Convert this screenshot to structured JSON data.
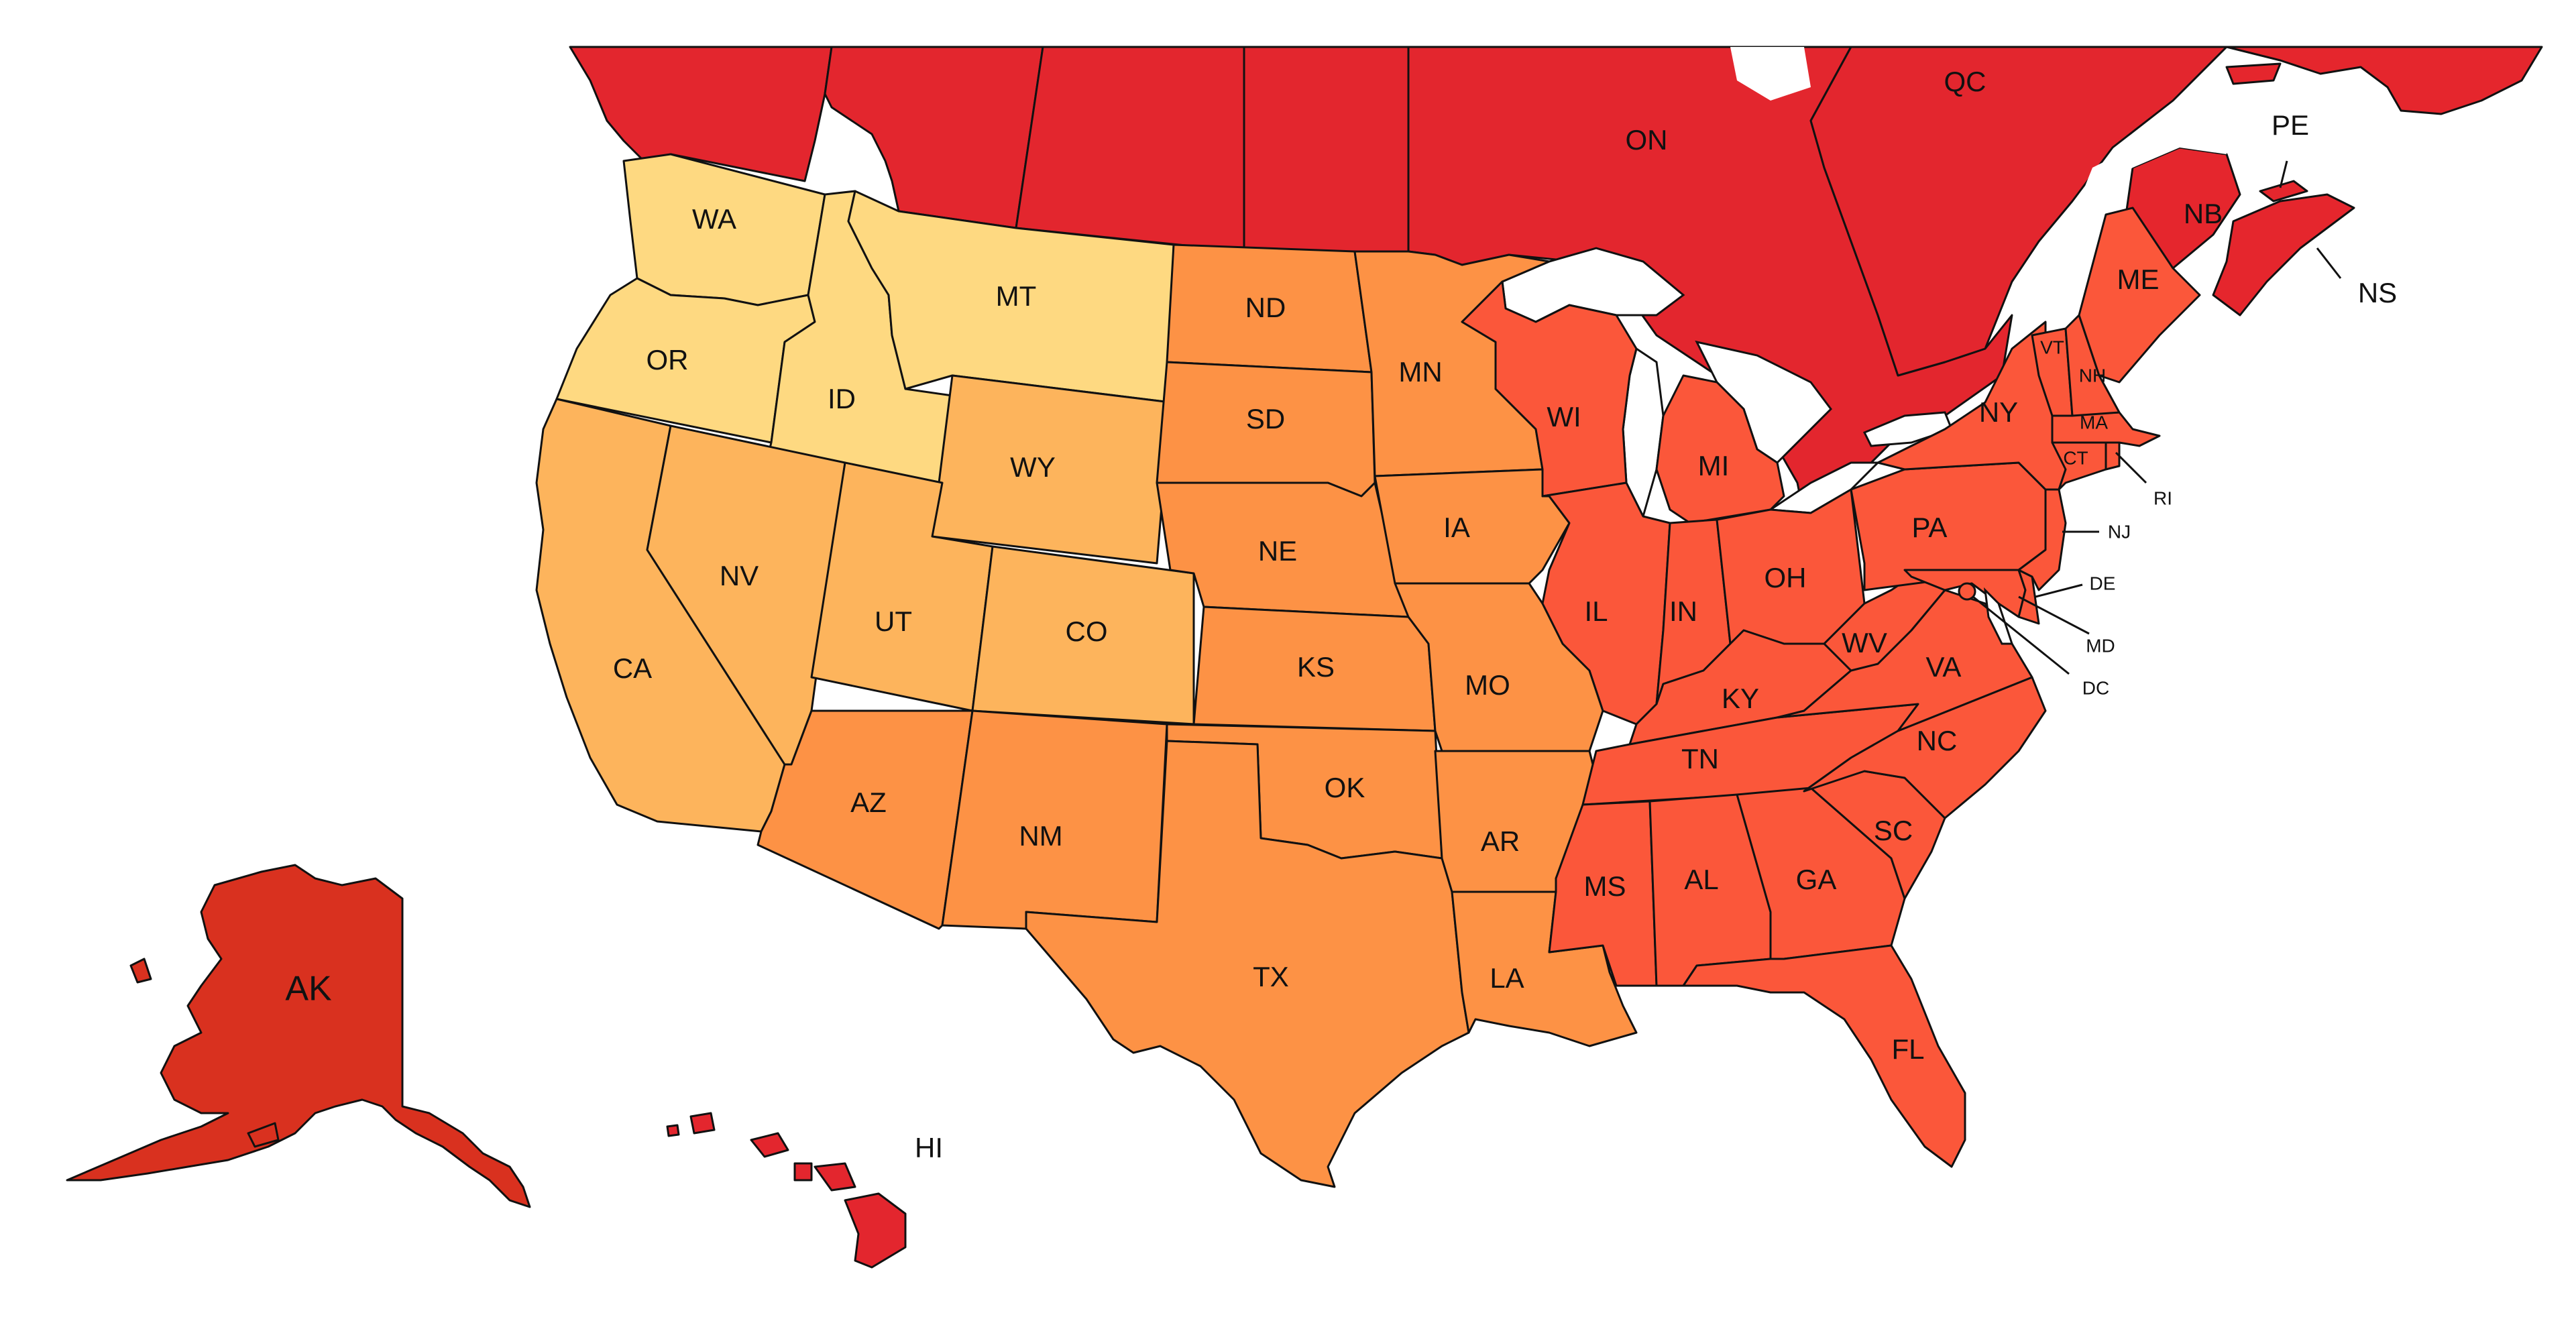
{
  "colors": {
    "canada": "#e3262e",
    "atlantic": "#e5262d",
    "east": "#fb573a",
    "alaska": "#d9311f",
    "hawaii": "#e3262e",
    "central": "#fd9245",
    "mountain": "#fdb45c",
    "northwest": "#fed981"
  },
  "labels": {
    "QC": "QC",
    "ON": "ON",
    "PE": "PE",
    "NB": "NB",
    "NS": "NS",
    "WA": "WA",
    "OR": "OR",
    "ID": "ID",
    "MT": "MT",
    "WY": "WY",
    "CA": "CA",
    "NV": "NV",
    "UT": "UT",
    "CO": "CO",
    "AZ": "AZ",
    "NM": "NM",
    "ND": "ND",
    "SD": "SD",
    "NE": "NE",
    "KS": "KS",
    "OK": "OK",
    "TX": "TX",
    "MN": "MN",
    "IA": "IA",
    "MO": "MO",
    "AR": "AR",
    "LA": "LA",
    "WI": "WI",
    "MI": "MI",
    "IL": "IL",
    "IN": "IN",
    "OH": "OH",
    "KY": "KY",
    "TN": "TN",
    "MS": "MS",
    "AL": "AL",
    "GA": "GA",
    "FL": "FL",
    "SC": "SC",
    "NC": "NC",
    "VA": "VA",
    "WV": "WV",
    "PA": "PA",
    "NY": "NY",
    "VT": "VT",
    "NH": "NH",
    "ME": "ME",
    "MA": "MA",
    "CT": "CT",
    "RI": "RI",
    "NJ": "NJ",
    "DE": "DE",
    "MD": "MD",
    "DC": "DC",
    "AK": "AK",
    "HI": "HI"
  }
}
